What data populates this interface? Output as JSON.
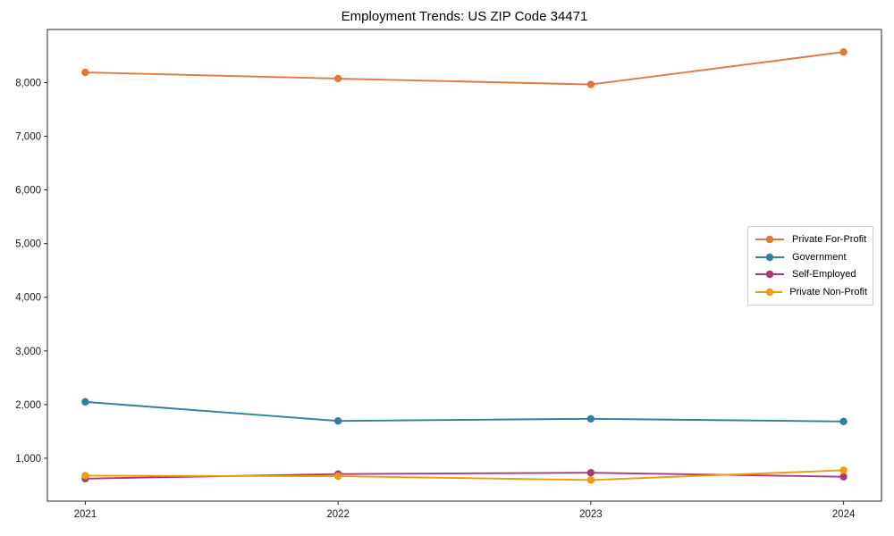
{
  "title": "Employment Trends: US ZIP Code 34471",
  "colors": {
    "axis": "#262626",
    "tick_text": "#1a1a1a",
    "legend_border": "#cccccc"
  },
  "chart_data": {
    "type": "line",
    "title": "Employment Trends: US ZIP Code 34471",
    "x": [
      2021,
      2022,
      2023,
      2024
    ],
    "x_tick_labels": [
      "2021",
      "2022",
      "2023",
      "2024"
    ],
    "y_ticks": [
      1000,
      2000,
      3000,
      4000,
      5000,
      6000,
      7000,
      8000
    ],
    "y_tick_labels": [
      "1,000",
      "2,000",
      "3,000",
      "4,000",
      "5,000",
      "6,000",
      "7,000",
      "8,000"
    ],
    "xlim": [
      2020.85,
      2024.15
    ],
    "ylim": [
      200,
      8990
    ],
    "grid": false,
    "legend_position": "center-right",
    "xlabel": "",
    "ylabel": "",
    "series": [
      {
        "name": "Private For-Profit",
        "color": "#e2773c",
        "values": [
          8190,
          8075,
          7965,
          8570
        ]
      },
      {
        "name": "Government",
        "color": "#2e7f9e",
        "values": [
          2050,
          1695,
          1735,
          1685
        ]
      },
      {
        "name": "Self-Employed",
        "color": "#a63a76",
        "values": [
          620,
          705,
          730,
          655
        ]
      },
      {
        "name": "Private Non-Profit",
        "color": "#ef9b0d",
        "values": [
          675,
          665,
          595,
          775
        ]
      }
    ]
  }
}
